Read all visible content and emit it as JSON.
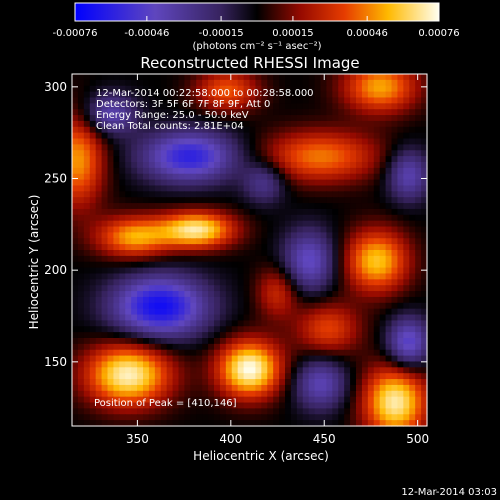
{
  "colorbar": {
    "tick_labels": [
      "-0.00076",
      "-0.00046",
      "-0.00015",
      "0.00015",
      "0.00046",
      "0.00076"
    ],
    "tick_values": [
      -0.00076,
      -0.00046,
      -0.00015,
      0.00015,
      0.00046,
      0.00076
    ],
    "range": [
      -0.00076,
      0.00076
    ],
    "units_label": "(photons cm⁻² s⁻¹ asec⁻²)"
  },
  "chart_data": {
    "type": "heatmap",
    "title": "Reconstructed RHESSI Image",
    "xlabel": "Heliocentric X (arcsec)",
    "ylabel": "Heliocentric Y (arcsec)",
    "xlim": [
      315,
      505
    ],
    "ylim": [
      115,
      307
    ],
    "x_ticks": [
      350,
      400,
      450,
      500
    ],
    "y_ticks": [
      150,
      200,
      250,
      300
    ],
    "x_tick_labels": [
      "350",
      "400",
      "450",
      "500"
    ],
    "y_tick_labels": [
      "150",
      "200",
      "250",
      "300"
    ],
    "colormap": "blue-black-red-yellow-white",
    "annotations": [
      "12-Mar-2014 00:22:58.000 to 00:28:58.000",
      "Detectors: 3F 5F 6F 7F 8F 9F, Att 0",
      "Energy Range: 25.0 - 50.0 keV",
      "Clean    Total counts: 2.81E+04"
    ],
    "peak_annotation": "Position of Peak = [410,146]",
    "peak_position": [
      410,
      146
    ],
    "sources": [
      {
        "x": 410,
        "y": 146,
        "sx": 12,
        "sy": 11,
        "amp": 0.00076
      },
      {
        "x": 345,
        "y": 143,
        "sx": 16,
        "sy": 12,
        "amp": 0.00072
      },
      {
        "x": 382,
        "y": 222,
        "sx": 14,
        "sy": 7,
        "amp": 0.00068
      },
      {
        "x": 348,
        "y": 218,
        "sx": 14,
        "sy": 8,
        "amp": 0.00052
      },
      {
        "x": 488,
        "y": 128,
        "sx": 12,
        "sy": 14,
        "amp": 0.0007
      },
      {
        "x": 318,
        "y": 260,
        "sx": 10,
        "sy": 18,
        "amp": 0.0005
      },
      {
        "x": 480,
        "y": 300,
        "sx": 14,
        "sy": 10,
        "amp": 0.00052
      },
      {
        "x": 448,
        "y": 262,
        "sx": 22,
        "sy": 10,
        "amp": 0.00045
      },
      {
        "x": 398,
        "y": 298,
        "sx": 12,
        "sy": 8,
        "amp": 0.0004
      },
      {
        "x": 478,
        "y": 205,
        "sx": 12,
        "sy": 12,
        "amp": 0.00058
      },
      {
        "x": 452,
        "y": 168,
        "sx": 12,
        "sy": 10,
        "amp": 0.00036
      },
      {
        "x": 425,
        "y": 188,
        "sx": 8,
        "sy": 10,
        "amp": 0.0003
      },
      {
        "x": 378,
        "y": 262,
        "sx": 18,
        "sy": 10,
        "amp": -0.0006
      },
      {
        "x": 362,
        "y": 180,
        "sx": 18,
        "sy": 12,
        "amp": -0.0007
      },
      {
        "x": 442,
        "y": 205,
        "sx": 10,
        "sy": 12,
        "amp": -0.00045
      },
      {
        "x": 335,
        "y": 285,
        "sx": 10,
        "sy": 8,
        "amp": -0.0004
      },
      {
        "x": 495,
        "y": 160,
        "sx": 8,
        "sy": 10,
        "amp": -0.0005
      },
      {
        "x": 448,
        "y": 138,
        "sx": 10,
        "sy": 10,
        "amp": -0.0004
      },
      {
        "x": 495,
        "y": 252,
        "sx": 8,
        "sy": 10,
        "amp": -0.0004
      },
      {
        "x": 418,
        "y": 248,
        "sx": 8,
        "sy": 8,
        "amp": -0.0003
      }
    ]
  },
  "timestamp": "12-Mar-2014 03:03"
}
